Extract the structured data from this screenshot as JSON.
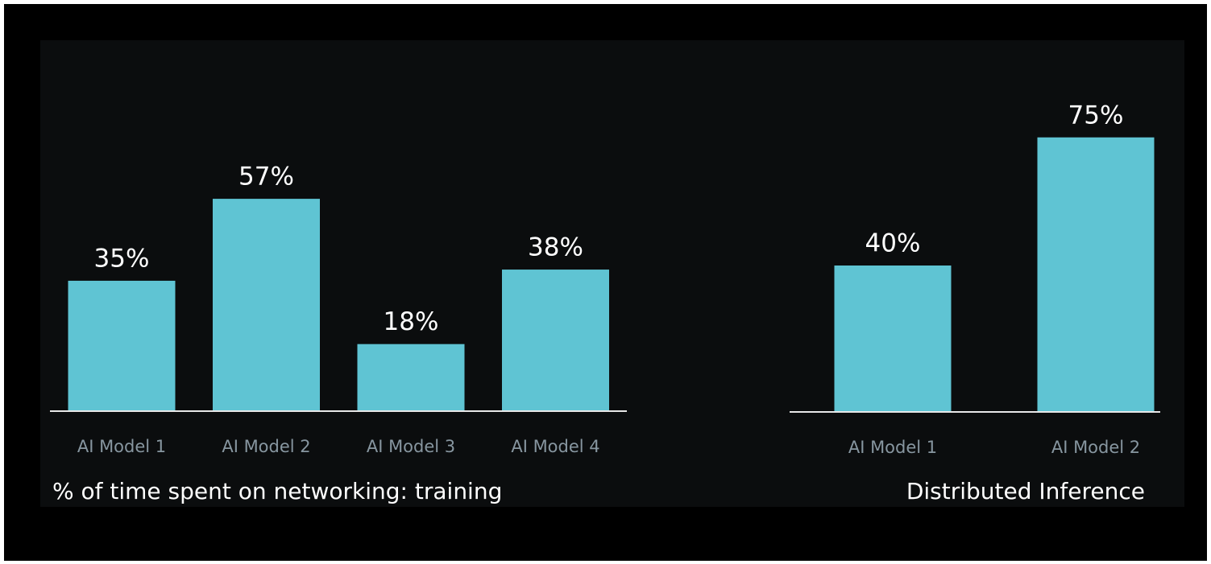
{
  "chart_data": [
    {
      "type": "bar",
      "title": "% of time spent on networking: training",
      "categories": [
        "AI Model 1",
        "AI Model 2",
        "AI Model 3",
        "AI Model 4"
      ],
      "values": [
        35,
        57,
        18,
        38
      ],
      "value_labels": [
        "35%",
        "57%",
        "18%",
        "38%"
      ],
      "color": "#5fc4d3"
    },
    {
      "type": "bar",
      "title": "Distributed Inference",
      "categories": [
        "AI Model 1",
        "AI Model 2"
      ],
      "values": [
        40,
        75
      ],
      "value_labels": [
        "40%",
        "75%"
      ],
      "color": "#5fc4d3"
    }
  ]
}
